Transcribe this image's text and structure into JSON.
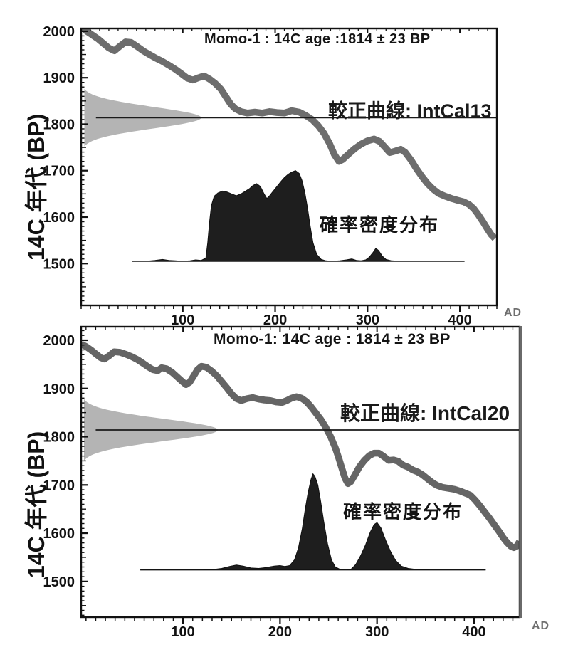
{
  "figure": {
    "background": "#ffffff",
    "x_unit": "AD",
    "y_axis_title": "14C 年代 (BP)"
  },
  "chart_data": [
    {
      "type": "line",
      "title": "Momo-1 : 14C age :1814 ± 23 BP",
      "curve_label": "較正曲線: IntCal13",
      "density_label": "確率密度分布",
      "ylabel": "14C 年代 (BP)",
      "x_unit": "AD",
      "xlim": [
        -10,
        440
      ],
      "ylim": [
        1410,
        2006
      ],
      "x_major_ticks": [
        100,
        200,
        300,
        400
      ],
      "x_minor_step": 10,
      "y_major_ticks": [
        2000,
        1900,
        1800,
        1700,
        1600,
        1500
      ],
      "y_minor_step": 10,
      "y_medium_step": 50,
      "radiocarbon_age": {
        "mean": 1814,
        "sigma": 23
      },
      "gaussian": {
        "extent_bp": 62,
        "tip_ad": 120
      },
      "mean_line": {
        "bp": 1814,
        "from_ad": 6,
        "to_ad": 440
      },
      "density_baseline": {
        "bp": 1505,
        "from_ad": 45,
        "to_ad": 405
      },
      "calibration_curve": [
        [
          -10,
          2012
        ],
        [
          -4,
          2000
        ],
        [
          2,
          1992
        ],
        [
          8,
          1984
        ],
        [
          14,
          1974
        ],
        [
          20,
          1964
        ],
        [
          26,
          1958
        ],
        [
          32,
          1968
        ],
        [
          38,
          1977
        ],
        [
          44,
          1976
        ],
        [
          50,
          1968
        ],
        [
          57,
          1958
        ],
        [
          64,
          1950
        ],
        [
          71,
          1942
        ],
        [
          78,
          1935
        ],
        [
          85,
          1927
        ],
        [
          92,
          1918
        ],
        [
          99,
          1908
        ],
        [
          105,
          1899
        ],
        [
          111,
          1895
        ],
        [
          117,
          1900
        ],
        [
          123,
          1904
        ],
        [
          129,
          1897
        ],
        [
          135,
          1888
        ],
        [
          141,
          1876
        ],
        [
          147,
          1858
        ],
        [
          152,
          1843
        ],
        [
          157,
          1833
        ],
        [
          163,
          1827
        ],
        [
          170,
          1824
        ],
        [
          178,
          1826
        ],
        [
          186,
          1824
        ],
        [
          194,
          1827
        ],
        [
          202,
          1825
        ],
        [
          210,
          1824
        ],
        [
          218,
          1829
        ],
        [
          226,
          1826
        ],
        [
          233,
          1819
        ],
        [
          240,
          1810
        ],
        [
          247,
          1796
        ],
        [
          253,
          1780
        ],
        [
          259,
          1758
        ],
        [
          264,
          1735
        ],
        [
          269,
          1720
        ],
        [
          273,
          1724
        ],
        [
          279,
          1735
        ],
        [
          286,
          1747
        ],
        [
          293,
          1757
        ],
        [
          300,
          1764
        ],
        [
          307,
          1768
        ],
        [
          313,
          1763
        ],
        [
          319,
          1750
        ],
        [
          324,
          1739
        ],
        [
          330,
          1742
        ],
        [
          336,
          1746
        ],
        [
          341,
          1739
        ],
        [
          347,
          1723
        ],
        [
          353,
          1704
        ],
        [
          359,
          1687
        ],
        [
          365,
          1672
        ],
        [
          371,
          1660
        ],
        [
          377,
          1651
        ],
        [
          384,
          1645
        ],
        [
          391,
          1640
        ],
        [
          398,
          1636
        ],
        [
          404,
          1633
        ],
        [
          410,
          1627
        ],
        [
          415,
          1618
        ],
        [
          420,
          1605
        ],
        [
          425,
          1590
        ],
        [
          430,
          1574
        ],
        [
          434,
          1562
        ],
        [
          438,
          1554
        ]
      ],
      "density": [
        [
          45,
          1505
        ],
        [
          60,
          1505
        ],
        [
          70,
          1507
        ],
        [
          78,
          1509
        ],
        [
          85,
          1507
        ],
        [
          92,
          1506
        ],
        [
          100,
          1505
        ],
        [
          108,
          1506
        ],
        [
          114,
          1508
        ],
        [
          120,
          1507
        ],
        [
          125,
          1512
        ],
        [
          127,
          1545
        ],
        [
          129,
          1590
        ],
        [
          131,
          1625
        ],
        [
          134,
          1645
        ],
        [
          138,
          1652
        ],
        [
          143,
          1656
        ],
        [
          148,
          1654
        ],
        [
          153,
          1650
        ],
        [
          158,
          1646
        ],
        [
          163,
          1650
        ],
        [
          168,
          1656
        ],
        [
          172,
          1661
        ],
        [
          176,
          1668
        ],
        [
          180,
          1672
        ],
        [
          184,
          1666
        ],
        [
          188,
          1650
        ],
        [
          191,
          1640
        ],
        [
          194,
          1646
        ],
        [
          198,
          1656
        ],
        [
          202,
          1666
        ],
        [
          206,
          1676
        ],
        [
          210,
          1685
        ],
        [
          214,
          1692
        ],
        [
          218,
          1697
        ],
        [
          222,
          1700
        ],
        [
          226,
          1694
        ],
        [
          229,
          1679
        ],
        [
          232,
          1654
        ],
        [
          235,
          1620
        ],
        [
          238,
          1580
        ],
        [
          241,
          1545
        ],
        [
          245,
          1520
        ],
        [
          250,
          1509
        ],
        [
          255,
          1506
        ],
        [
          262,
          1505
        ],
        [
          270,
          1506
        ],
        [
          277,
          1508
        ],
        [
          283,
          1510
        ],
        [
          288,
          1507
        ],
        [
          293,
          1506
        ],
        [
          298,
          1508
        ],
        [
          302,
          1514
        ],
        [
          306,
          1524
        ],
        [
          309,
          1533
        ],
        [
          312,
          1528
        ],
        [
          316,
          1516
        ],
        [
          320,
          1509
        ],
        [
          326,
          1506
        ],
        [
          335,
          1505
        ],
        [
          360,
          1505
        ],
        [
          385,
          1505
        ],
        [
          405,
          1505
        ]
      ],
      "colors": {
        "band": "#6d6d6d",
        "gaussian": "#b4b4b4",
        "density": "#1e1e1e",
        "mean_line": "#1a1a1a",
        "axis": "#111111",
        "baseline": "#333333"
      }
    },
    {
      "type": "line",
      "title": "Momo-1: 14C age : 1814 ± 23 BP",
      "curve_label": "較正曲線: IntCal20",
      "density_label": "確率密度分布",
      "ylabel": "14C 年代 (BP)",
      "x_unit": "AD",
      "xlim": [
        -5,
        447
      ],
      "ylim": [
        1426,
        2028
      ],
      "x_major_ticks": [
        100,
        200,
        300,
        400
      ],
      "x_minor_step": 10,
      "y_major_ticks": [
        2000,
        1900,
        1800,
        1700,
        1600,
        1500
      ],
      "y_minor_step": 10,
      "y_medium_step": 50,
      "radiocarbon_age": {
        "mean": 1814,
        "sigma": 23
      },
      "gaussian": {
        "extent_bp": 64,
        "tip_ad": 136
      },
      "mean_line": {
        "bp": 1814,
        "from_ad": 10,
        "to_ad": 447
      },
      "density_baseline": {
        "bp": 1524,
        "from_ad": 56,
        "to_ad": 412
      },
      "calibration_curve": [
        [
          -5,
          1992
        ],
        [
          0,
          1987
        ],
        [
          5,
          1980
        ],
        [
          10,
          1972
        ],
        [
          15,
          1964
        ],
        [
          19,
          1961
        ],
        [
          24,
          1968
        ],
        [
          29,
          1976
        ],
        [
          35,
          1975
        ],
        [
          41,
          1971
        ],
        [
          47,
          1966
        ],
        [
          53,
          1960
        ],
        [
          59,
          1952
        ],
        [
          64,
          1945
        ],
        [
          69,
          1939
        ],
        [
          74,
          1937
        ],
        [
          78,
          1943
        ],
        [
          83,
          1941
        ],
        [
          89,
          1933
        ],
        [
          94,
          1924
        ],
        [
          99,
          1915
        ],
        [
          103,
          1908
        ],
        [
          107,
          1913
        ],
        [
          111,
          1926
        ],
        [
          115,
          1939
        ],
        [
          119,
          1946
        ],
        [
          124,
          1944
        ],
        [
          129,
          1937
        ],
        [
          135,
          1926
        ],
        [
          140,
          1914
        ],
        [
          145,
          1902
        ],
        [
          150,
          1889
        ],
        [
          155,
          1879
        ],
        [
          160,
          1875
        ],
        [
          166,
          1879
        ],
        [
          172,
          1881
        ],
        [
          178,
          1878
        ],
        [
          184,
          1876
        ],
        [
          190,
          1875
        ],
        [
          196,
          1872
        ],
        [
          202,
          1871
        ],
        [
          207,
          1875
        ],
        [
          212,
          1880
        ],
        [
          217,
          1883
        ],
        [
          222,
          1880
        ],
        [
          227,
          1873
        ],
        [
          232,
          1862
        ],
        [
          237,
          1849
        ],
        [
          242,
          1836
        ],
        [
          247,
          1820
        ],
        [
          252,
          1801
        ],
        [
          257,
          1777
        ],
        [
          261,
          1753
        ],
        [
          264,
          1733
        ],
        [
          267,
          1714
        ],
        [
          270,
          1703
        ],
        [
          273,
          1707
        ],
        [
          277,
          1720
        ],
        [
          282,
          1738
        ],
        [
          287,
          1751
        ],
        [
          292,
          1761
        ],
        [
          297,
          1766
        ],
        [
          302,
          1766
        ],
        [
          307,
          1759
        ],
        [
          312,
          1751
        ],
        [
          317,
          1752
        ],
        [
          322,
          1749
        ],
        [
          327,
          1741
        ],
        [
          332,
          1737
        ],
        [
          337,
          1731
        ],
        [
          342,
          1727
        ],
        [
          347,
          1721
        ],
        [
          352,
          1713
        ],
        [
          357,
          1705
        ],
        [
          362,
          1699
        ],
        [
          368,
          1695
        ],
        [
          374,
          1693
        ],
        [
          380,
          1691
        ],
        [
          386,
          1687
        ],
        [
          391,
          1683
        ],
        [
          396,
          1679
        ],
        [
          401,
          1669
        ],
        [
          406,
          1657
        ],
        [
          411,
          1644
        ],
        [
          416,
          1631
        ],
        [
          421,
          1617
        ],
        [
          426,
          1603
        ],
        [
          430,
          1591
        ],
        [
          434,
          1581
        ],
        [
          438,
          1573
        ],
        [
          441,
          1570
        ],
        [
          444,
          1573
        ],
        [
          447,
          1583
        ]
      ],
      "density": [
        [
          56,
          1524
        ],
        [
          80,
          1524
        ],
        [
          100,
          1524
        ],
        [
          120,
          1524
        ],
        [
          132,
          1525
        ],
        [
          140,
          1527
        ],
        [
          148,
          1531
        ],
        [
          155,
          1534
        ],
        [
          162,
          1532
        ],
        [
          170,
          1528
        ],
        [
          178,
          1527
        ],
        [
          186,
          1529
        ],
        [
          194,
          1532
        ],
        [
          200,
          1533
        ],
        [
          205,
          1531
        ],
        [
          210,
          1533
        ],
        [
          215,
          1545
        ],
        [
          219,
          1570
        ],
        [
          223,
          1610
        ],
        [
          226,
          1650
        ],
        [
          229,
          1685
        ],
        [
          232,
          1712
        ],
        [
          234,
          1723
        ],
        [
          236,
          1718
        ],
        [
          239,
          1700
        ],
        [
          242,
          1665
        ],
        [
          245,
          1625
        ],
        [
          249,
          1578
        ],
        [
          253,
          1545
        ],
        [
          257,
          1530
        ],
        [
          262,
          1525
        ],
        [
          268,
          1524
        ],
        [
          273,
          1525
        ],
        [
          278,
          1535
        ],
        [
          283,
          1553
        ],
        [
          288,
          1575
        ],
        [
          293,
          1602
        ],
        [
          297,
          1618
        ],
        [
          300,
          1622
        ],
        [
          304,
          1611
        ],
        [
          309,
          1585
        ],
        [
          314,
          1562
        ],
        [
          319,
          1544
        ],
        [
          325,
          1532
        ],
        [
          332,
          1527
        ],
        [
          340,
          1525
        ],
        [
          355,
          1524
        ],
        [
          380,
          1524
        ],
        [
          412,
          1524
        ]
      ],
      "colors": {
        "band": "#656565",
        "gaussian": "#b4b4b4",
        "density": "#1e1e1e",
        "mean_line": "#1a1a1a",
        "axis": "#111111",
        "baseline": "#333333"
      }
    }
  ]
}
